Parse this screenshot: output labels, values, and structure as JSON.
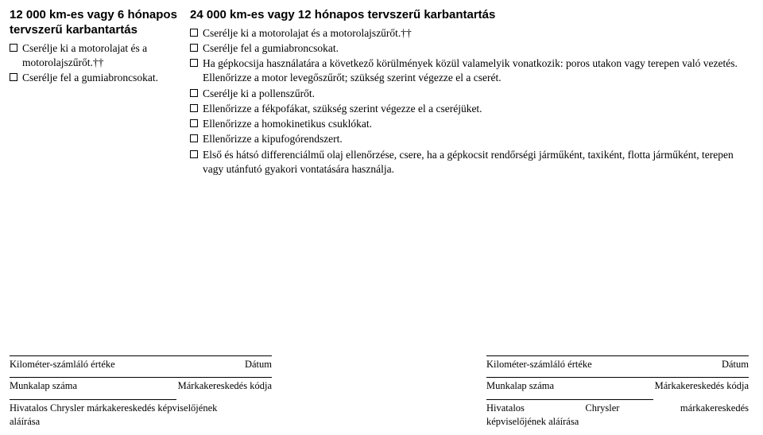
{
  "left": {
    "title": "12 000 km-es vagy 6 hónapos tervszerű karbantartás",
    "items": [
      "Cserélje ki a motorolajat és a motorolajszűrőt.††",
      "Cserélje fel a gumiabroncsokat."
    ]
  },
  "right": {
    "title": "24 000 km-es vagy 12 hónapos tervszerű karbantartás",
    "items": [
      "Cserélje ki a motorolajat és a motorolajszűrőt.††",
      "Cserélje fel a gumiabroncsokat.",
      "Ha gépkocsija használatára a következő körülmények közül valamelyik vonatkozik: poros utakon vagy terepen való vezetés. Ellenőrizze a motor levegőszűrőt; szükség szerint végezze el a cserét.",
      "Cserélje ki a pollenszűrőt.",
      "Ellenőrizze a fékpofákat, szükség szerint végezze el a cseréjüket.",
      "Ellenőrizze a homokinetikus csuklókat.",
      "Ellenőrizze a kipufogórendszert.",
      "Első és hátsó differenciálmű olaj ellenőrzése, csere, ha a gépkocsit rendőrségi járműként, taxiként, flotta járműként, terepen vagy utánfutó gyakori vontatására használja."
    ]
  },
  "footer": {
    "km_label": "Kilométer-számláló értéke",
    "date_label": "Dátum",
    "worksheet_label": "Munkalap száma",
    "dealer_label": "Márkakereskedés kódja",
    "sig_left_l1": "Hivatalos Chrysler márkakereskedés képviselőjének",
    "sig_left_l2": "aláírása",
    "sig_right_l1a": "Hivatalos",
    "sig_right_l1b": "Chrysler",
    "sig_right_l1c": "márkakereskedés",
    "sig_right_l2": "képviselőjének aláírása"
  }
}
